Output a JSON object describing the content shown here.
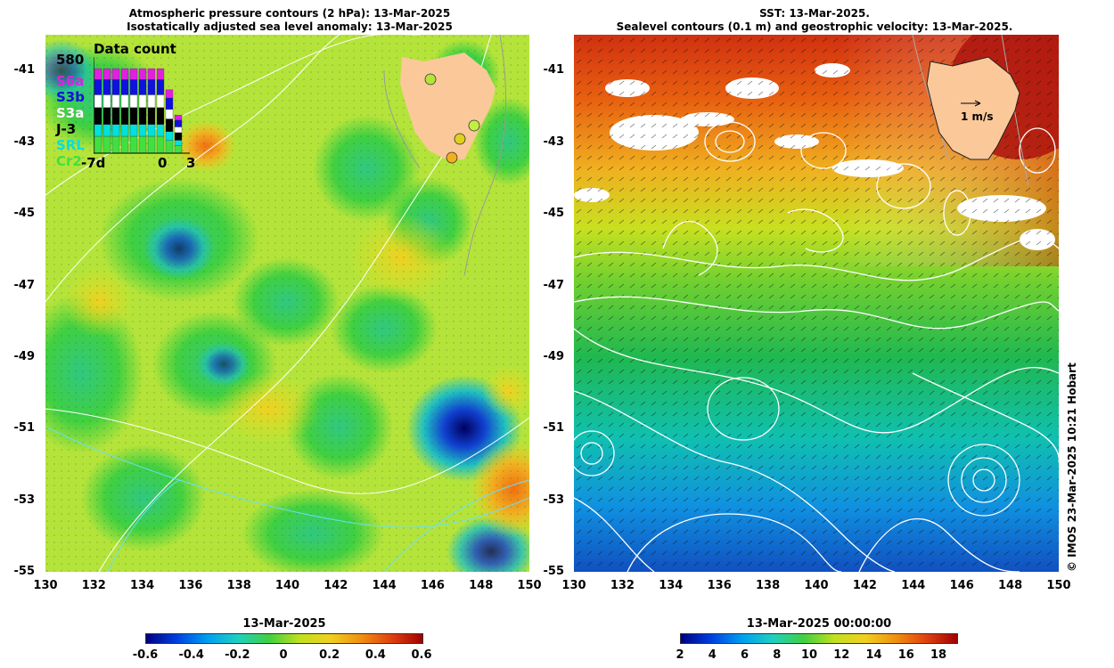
{
  "left_panel": {
    "title_line1": "Atmospheric pressure contours (2 hPa): 13-Mar-2025",
    "title_line2": "Isostatically adjusted sea level anomaly: 13-Mar-2025",
    "inset": {
      "title": "Data count",
      "max_count": "580",
      "missions": [
        {
          "name": "S6a",
          "color": "#e020e0"
        },
        {
          "name": "S3b",
          "color": "#1010e0"
        },
        {
          "name": "S3a",
          "color": "#ffffff"
        },
        {
          "name": "J-3",
          "color": "#000000"
        },
        {
          "name": "SRL",
          "color": "#00e0e0"
        },
        {
          "name": "Cr2",
          "color": "#40e040"
        }
      ],
      "x_left": "-7d",
      "x_zero": "0",
      "x_right": "3"
    },
    "colorbar": {
      "title": "13-Mar-2025",
      "ticks": [
        "-0.6",
        "-0.4",
        "-0.2",
        "0",
        "0.2",
        "0.4",
        "0.6"
      ]
    }
  },
  "right_panel": {
    "title_line1": "SST: 13-Mar-2025.",
    "title_line2": "Sealevel contours (0.1 m) and geostrophic velocity: 13-Mar-2025.",
    "velocity_scale_label": "1 m/s",
    "colorbar": {
      "title": "13-Mar-2025 00:00:00",
      "ticks": [
        "2",
        "4",
        "6",
        "8",
        "10",
        "12",
        "14",
        "16",
        "18"
      ]
    }
  },
  "axes": {
    "y_ticks": [
      "-41",
      "-43",
      "-45",
      "-47",
      "-49",
      "-51",
      "-53",
      "-55"
    ],
    "x_ticks": [
      "130",
      "132",
      "134",
      "136",
      "138",
      "140",
      "142",
      "144",
      "146",
      "148",
      "150"
    ]
  },
  "credit": "© IMOS 23-Mar-2025 10:21 Hobart",
  "colors": {
    "land": "#fbc89a",
    "sla_mean": "#b8e830",
    "sst_warm": "#d04010",
    "sst_cold": "#2070d0"
  }
}
